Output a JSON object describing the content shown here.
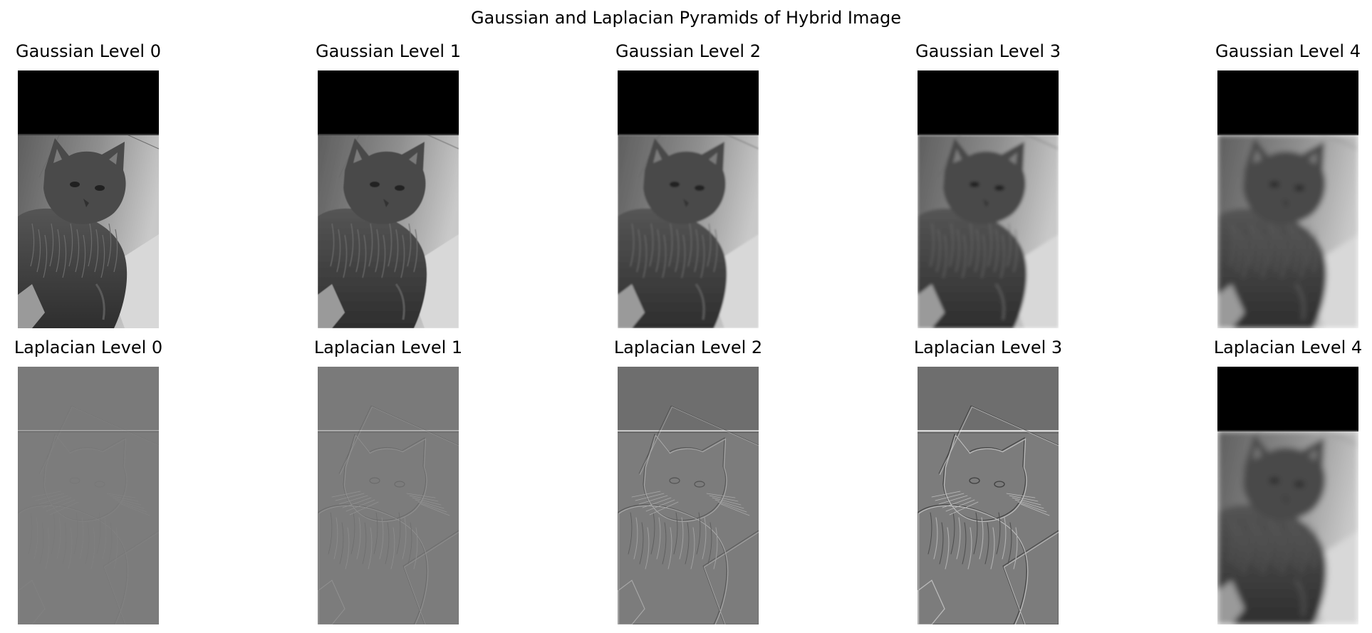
{
  "figure": {
    "title": "Gaussian and Laplacian Pyramids of Hybrid Image"
  },
  "gaussian": {
    "labels": [
      "Gaussian Level 0",
      "Gaussian Level 1",
      "Gaussian Level 2",
      "Gaussian Level 3",
      "Gaussian Level 4"
    ],
    "blur": [
      0,
      0.4,
      1.2,
      2.2,
      3.6
    ]
  },
  "laplacian": {
    "labels": [
      "Laplacian Level 0",
      "Laplacian Level 1",
      "Laplacian Level 2",
      "Laplacian Level 3",
      "Laplacian Level 4"
    ],
    "contrast": [
      0.06,
      0.22,
      0.45,
      0.65,
      1.0
    ]
  },
  "colors": {
    "background": "#ffffff",
    "text": "#000000",
    "black_band": "#000000",
    "laplacian_gray": "#7c7c7c"
  }
}
